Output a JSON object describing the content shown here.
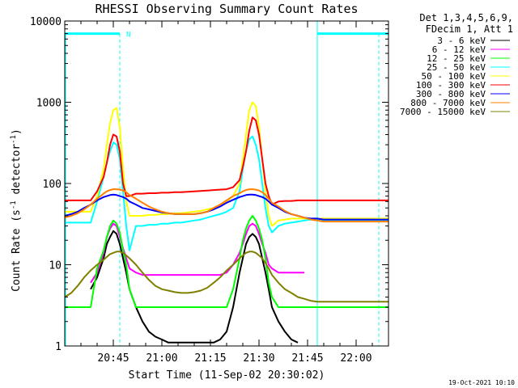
{
  "chart_data": {
    "type": "line",
    "title": "RHESSI Observing Summary Count Rates",
    "xlabel": "Start Time (11-Sep-02 20:30:02)",
    "ylabel_main": "Count Rate (s",
    "ylabel_sup1": "-1",
    "ylabel_mid": " detector",
    "ylabel_sup2": "-1",
    "ylabel_end": ")",
    "x_unit": "minutes after 20:30:02",
    "xlim": [
      0,
      100
    ],
    "ylim": [
      1,
      10000
    ],
    "yscale": "log",
    "xticks": [
      {
        "value": 15,
        "label": "20:45"
      },
      {
        "value": 30,
        "label": "21:00"
      },
      {
        "value": 45,
        "label": "21:15"
      },
      {
        "value": 60,
        "label": "21:30"
      },
      {
        "value": 75,
        "label": "21:45"
      },
      {
        "value": 90,
        "label": "22:00"
      }
    ],
    "yticks": [
      {
        "value": 1,
        "label": "1"
      },
      {
        "value": 10,
        "label": "10"
      },
      {
        "value": 100,
        "label": "100"
      },
      {
        "value": 1000,
        "label": "1000"
      },
      {
        "value": 10000,
        "label": "10000"
      }
    ],
    "legend_header": [
      "Det 1,3,4,5,6,9,",
      "FDecim 1, Att 1"
    ],
    "legend_position": "right",
    "footer_date": "19-Oct-2021 10:10",
    "night_flag": {
      "label": "N",
      "value": 7000,
      "ranges": [
        [
          0,
          17
        ],
        [
          78,
          100
        ]
      ],
      "color": "#00ffff"
    },
    "x": [
      0,
      2,
      4,
      6,
      8,
      10,
      12,
      13,
      14,
      15,
      16,
      17,
      18,
      19,
      20,
      22,
      24,
      26,
      28,
      30,
      32,
      34,
      36,
      38,
      40,
      42,
      44,
      46,
      48,
      50,
      52,
      54,
      55,
      56,
      57,
      58,
      59,
      60,
      61,
      62,
      63,
      64,
      66,
      68,
      70,
      72,
      74,
      76,
      78,
      80,
      82,
      84,
      86,
      88,
      90,
      92,
      94,
      96,
      98,
      100
    ],
    "series": [
      {
        "name": "3 - 6 keV",
        "color": "#000000",
        "values": [
          null,
          null,
          null,
          null,
          5,
          7,
          12,
          18,
          22,
          26,
          24,
          18,
          12,
          8,
          5,
          3,
          2,
          1.5,
          1.3,
          1.2,
          1.1,
          1.1,
          1.1,
          1.1,
          1.1,
          1.1,
          1.1,
          1.1,
          1.2,
          1.5,
          3,
          8,
          12,
          18,
          22,
          24,
          22,
          18,
          12,
          8,
          5,
          3,
          2,
          1.5,
          1.2,
          1.1,
          null,
          null,
          null,
          null,
          null,
          null,
          null,
          null,
          null,
          null,
          null,
          null,
          null,
          null
        ]
      },
      {
        "name": "6 - 12 keV",
        "color": "#ff00ff",
        "values": [
          null,
          null,
          null,
          null,
          6,
          8,
          14,
          22,
          28,
          32,
          30,
          22,
          16,
          12,
          9,
          8,
          7.5,
          7.5,
          7.5,
          7.5,
          7.5,
          7.5,
          7.5,
          7.5,
          7.5,
          7.5,
          7.5,
          7.5,
          7.5,
          8,
          10,
          14,
          18,
          24,
          30,
          32,
          30,
          24,
          18,
          14,
          10,
          9,
          8,
          8,
          8,
          8,
          8,
          null,
          null,
          null,
          null,
          null,
          null,
          null,
          null,
          null,
          null,
          null,
          null,
          null
        ]
      },
      {
        "name": "12 - 25 keV",
        "color": "#00ff00",
        "values": [
          3,
          3,
          3,
          3,
          3,
          9,
          15,
          22,
          30,
          35,
          32,
          25,
          15,
          10,
          5,
          3,
          3,
          3,
          3,
          3,
          3,
          3,
          3,
          3,
          3,
          3,
          3,
          3,
          3,
          3,
          5,
          12,
          20,
          28,
          35,
          40,
          35,
          28,
          20,
          12,
          6,
          4,
          3,
          3,
          3,
          3,
          3,
          3,
          3,
          3,
          3,
          3,
          3,
          3,
          3,
          3,
          3,
          3,
          3,
          3
        ]
      },
      {
        "name": "25 - 50 keV",
        "color": "#00ffff",
        "values": [
          33,
          33,
          33,
          33,
          33,
          60,
          120,
          180,
          250,
          320,
          300,
          200,
          80,
          30,
          15,
          30,
          30,
          31,
          31,
          32,
          32,
          33,
          33,
          34,
          35,
          36,
          38,
          40,
          42,
          45,
          50,
          80,
          150,
          250,
          350,
          380,
          300,
          200,
          100,
          50,
          30,
          25,
          30,
          32,
          33,
          34,
          35,
          36,
          36,
          35,
          35,
          35,
          35,
          35,
          35,
          35,
          35,
          35,
          35,
          35
        ]
      },
      {
        "name": "50 - 100 keV",
        "color": "#ffff00",
        "values": [
          45,
          45,
          45,
          45,
          45,
          70,
          150,
          300,
          550,
          800,
          850,
          500,
          150,
          60,
          40,
          40,
          40,
          41,
          41,
          42,
          42,
          43,
          43,
          44,
          45,
          46,
          48,
          50,
          55,
          60,
          70,
          100,
          200,
          400,
          800,
          1000,
          900,
          500,
          200,
          80,
          40,
          30,
          35,
          36,
          37,
          37,
          37,
          37,
          37,
          37,
          37,
          37,
          37,
          37,
          37,
          37,
          37,
          37,
          37,
          37
        ]
      },
      {
        "name": "100 - 300 keV",
        "color": "#ff0000",
        "values": [
          62,
          62,
          62,
          62,
          62,
          80,
          120,
          180,
          300,
          400,
          380,
          250,
          100,
          70,
          70,
          75,
          75,
          76,
          76,
          77,
          77,
          78,
          78,
          79,
          80,
          81,
          82,
          83,
          84,
          85,
          90,
          110,
          160,
          250,
          450,
          650,
          600,
          400,
          200,
          100,
          70,
          55,
          60,
          61,
          61,
          62,
          62,
          62,
          62,
          62,
          62,
          62,
          62,
          62,
          62,
          62,
          62,
          62,
          62,
          62
        ]
      },
      {
        "name": "300 - 800 keV",
        "color": "#0000ff",
        "values": [
          40,
          42,
          45,
          50,
          55,
          62,
          68,
          70,
          72,
          73,
          72,
          70,
          68,
          65,
          60,
          55,
          50,
          48,
          46,
          44,
          43,
          42,
          42,
          42,
          42,
          43,
          45,
          48,
          52,
          58,
          63,
          68,
          70,
          72,
          73,
          73,
          72,
          70,
          68,
          65,
          60,
          55,
          50,
          45,
          42,
          40,
          38,
          37,
          37,
          36,
          36,
          36,
          36,
          36,
          36,
          36,
          36,
          36,
          36,
          36
        ]
      },
      {
        "name": "800 - 7000 keV",
        "color": "#ff8000",
        "values": [
          38,
          40,
          43,
          48,
          55,
          65,
          75,
          80,
          83,
          85,
          85,
          84,
          82,
          78,
          72,
          65,
          58,
          52,
          48,
          45,
          43,
          42,
          42,
          42,
          42,
          43,
          45,
          50,
          55,
          62,
          70,
          76,
          80,
          83,
          85,
          85,
          84,
          82,
          78,
          72,
          65,
          58,
          52,
          46,
          42,
          40,
          38,
          36,
          35,
          34,
          34,
          34,
          34,
          34,
          34,
          34,
          34,
          34,
          34,
          34
        ]
      },
      {
        "name": "7000 - 15000 keV",
        "color": "#808000",
        "values": [
          4,
          4.5,
          5.5,
          7,
          8.5,
          10,
          11.5,
          12.5,
          13.5,
          14,
          14.5,
          14.5,
          14,
          13,
          12,
          10,
          8,
          6.5,
          5.5,
          5,
          4.8,
          4.6,
          4.5,
          4.5,
          4.6,
          4.8,
          5.2,
          6,
          7,
          8.5,
          10,
          12,
          13,
          14,
          14.5,
          14.5,
          14,
          13,
          12,
          10.5,
          9,
          7.5,
          6,
          5,
          4.5,
          4,
          3.8,
          3.6,
          3.5,
          3.5,
          3.5,
          3.5,
          3.5,
          3.5,
          3.5,
          3.5,
          3.5,
          3.5,
          3.5,
          3.5
        ]
      }
    ]
  }
}
